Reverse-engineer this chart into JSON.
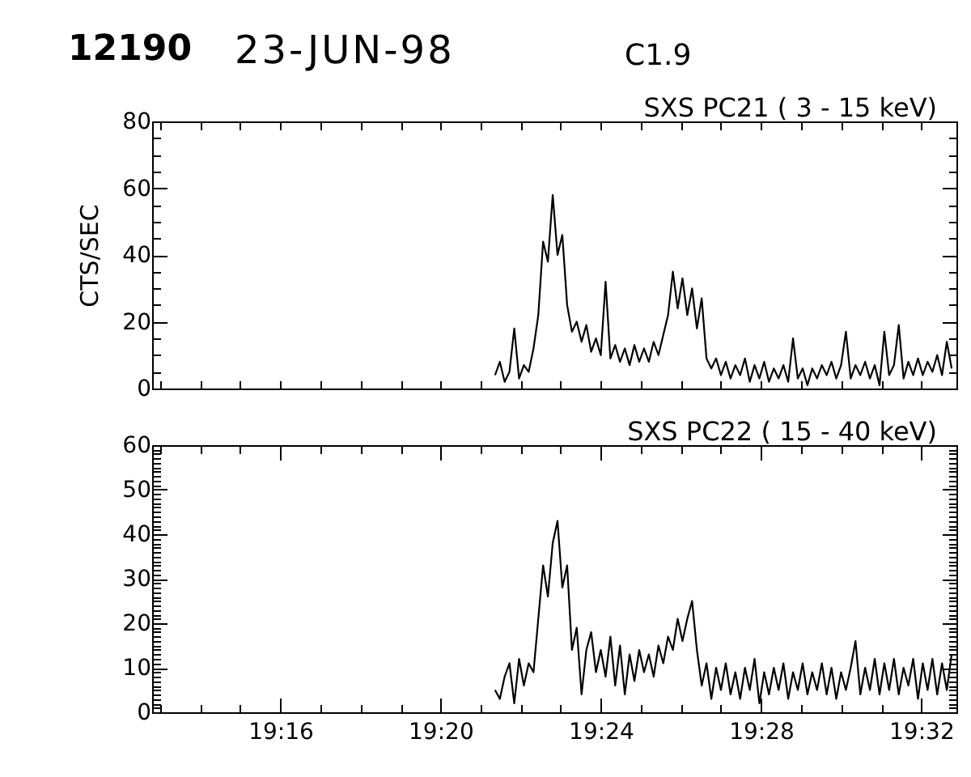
{
  "chart_data": [
    {
      "type": "line",
      "title": "SXS PC21 ( 3 - 15 keV)",
      "ylabel": "CTS/SEC",
      "annotations": [
        "12190",
        "23-JUN-98",
        "C1.9"
      ],
      "color": "#000000",
      "x": [
        19.356,
        19.358,
        19.36,
        19.362,
        19.364,
        19.366,
        19.368,
        19.37,
        19.372,
        19.374,
        19.376,
        19.378,
        19.38,
        19.382,
        19.384,
        19.386,
        19.388,
        19.39,
        19.392,
        19.394,
        19.396,
        19.398,
        19.4,
        19.402,
        19.404,
        19.406,
        19.408,
        19.41,
        19.412,
        19.414,
        19.416,
        19.418,
        19.42,
        19.422,
        19.424,
        19.426,
        19.428,
        19.43,
        19.432,
        19.434,
        19.436,
        19.438,
        19.44,
        19.442,
        19.444,
        19.446,
        19.448,
        19.45,
        19.452,
        19.454,
        19.456,
        19.458,
        19.46,
        19.462,
        19.464,
        19.466,
        19.468,
        19.47,
        19.472,
        19.474,
        19.476,
        19.478,
        19.48,
        19.482,
        19.484,
        19.486,
        19.488,
        19.49,
        19.492,
        19.494,
        19.496,
        19.498,
        19.5,
        19.502,
        19.504,
        19.506,
        19.508,
        19.51,
        19.512,
        19.514,
        19.516,
        19.518,
        19.52,
        19.522,
        19.524,
        19.526,
        19.528,
        19.53,
        19.532,
        19.534,
        19.536,
        19.538,
        19.54,
        19.542,
        19.544,
        19.546
      ],
      "values": [
        4,
        8,
        2,
        5,
        18,
        3,
        7,
        5,
        12,
        22,
        44,
        38,
        58,
        40,
        46,
        25,
        17,
        20,
        14,
        19,
        11,
        15,
        10,
        32,
        9,
        13,
        8,
        12,
        7,
        13,
        8,
        12,
        8,
        14,
        10,
        16,
        22,
        35,
        24,
        33,
        22,
        30,
        18,
        27,
        9,
        6,
        9,
        4,
        8,
        3,
        7,
        4,
        9,
        2,
        7,
        3,
        8,
        2,
        6,
        3,
        7,
        2,
        15,
        3,
        6,
        1,
        6,
        3,
        7,
        4,
        8,
        3,
        7,
        17,
        3,
        7,
        4,
        8,
        3,
        7,
        1,
        17,
        4,
        7,
        19,
        3,
        8,
        4,
        9,
        4,
        8,
        5,
        10,
        4,
        14,
        6
      ],
      "xlim": [
        19.2133,
        19.548
      ],
      "ylim": [
        0,
        80
      ],
      "xticks": [
        {
          "value": 19.2167,
          "label": null
        },
        {
          "value": 19.2333,
          "label": null
        },
        {
          "value": 19.25,
          "label": null
        },
        {
          "value": 19.2667,
          "label": null
        },
        {
          "value": 19.2833,
          "label": null
        },
        {
          "value": 19.3,
          "label": null
        },
        {
          "value": 19.3167,
          "label": null
        },
        {
          "value": 19.3333,
          "label": null
        },
        {
          "value": 19.35,
          "label": null
        },
        {
          "value": 19.3667,
          "label": null
        },
        {
          "value": 19.3833,
          "label": null
        },
        {
          "value": 19.4,
          "label": null
        },
        {
          "value": 19.4167,
          "label": null
        },
        {
          "value": 19.4333,
          "label": null
        },
        {
          "value": 19.45,
          "label": null
        },
        {
          "value": 19.4667,
          "label": null
        },
        {
          "value": 19.4833,
          "label": null
        },
        {
          "value": 19.5,
          "label": null
        },
        {
          "value": 19.5167,
          "label": null
        },
        {
          "value": 19.5333,
          "label": null
        }
      ],
      "yticks": [
        0,
        {
          "value": 5,
          "label": null
        },
        {
          "value": 10,
          "label": null
        },
        {
          "value": 15,
          "label": null
        },
        20,
        {
          "value": 25,
          "label": null
        },
        {
          "value": 30,
          "label": null
        },
        {
          "value": 35,
          "label": null
        },
        40,
        {
          "value": 45,
          "label": null
        },
        {
          "value": 50,
          "label": null
        },
        {
          "value": 55,
          "label": null
        },
        60,
        {
          "value": 65,
          "label": null
        },
        {
          "value": 70,
          "label": null
        },
        {
          "value": 75,
          "label": null
        },
        80
      ],
      "tick_labels": "y"
    },
    {
      "type": "line",
      "title": "SXS PC22 ( 15 - 40 keV)",
      "color": "#000000",
      "x": [
        19.356,
        19.358,
        19.36,
        19.362,
        19.364,
        19.366,
        19.368,
        19.37,
        19.372,
        19.374,
        19.376,
        19.378,
        19.38,
        19.382,
        19.384,
        19.386,
        19.388,
        19.39,
        19.392,
        19.394,
        19.396,
        19.398,
        19.4,
        19.402,
        19.404,
        19.406,
        19.408,
        19.41,
        19.412,
        19.414,
        19.416,
        19.418,
        19.42,
        19.422,
        19.424,
        19.426,
        19.428,
        19.43,
        19.432,
        19.434,
        19.436,
        19.438,
        19.44,
        19.442,
        19.444,
        19.446,
        19.448,
        19.45,
        19.452,
        19.454,
        19.456,
        19.458,
        19.46,
        19.462,
        19.464,
        19.466,
        19.468,
        19.47,
        19.472,
        19.474,
        19.476,
        19.478,
        19.48,
        19.482,
        19.484,
        19.486,
        19.488,
        19.49,
        19.492,
        19.494,
        19.496,
        19.498,
        19.5,
        19.502,
        19.504,
        19.506,
        19.508,
        19.51,
        19.512,
        19.514,
        19.516,
        19.518,
        19.52,
        19.522,
        19.524,
        19.526,
        19.528,
        19.53,
        19.532,
        19.534,
        19.536,
        19.538,
        19.54,
        19.542,
        19.544,
        19.546
      ],
      "values": [
        5,
        3,
        8,
        11,
        2,
        12,
        6,
        11,
        9,
        21,
        33,
        26,
        38,
        43,
        28,
        33,
        14,
        19,
        4,
        14,
        18,
        9,
        14,
        8,
        17,
        6,
        15,
        4,
        13,
        7,
        14,
        9,
        13,
        8,
        15,
        11,
        17,
        14,
        21,
        16,
        21,
        25,
        14,
        6,
        11,
        3,
        10,
        5,
        11,
        4,
        9,
        3,
        10,
        5,
        12,
        2,
        9,
        4,
        10,
        5,
        11,
        3,
        9,
        5,
        11,
        4,
        9,
        5,
        11,
        4,
        10,
        3,
        9,
        5,
        10,
        16,
        4,
        10,
        5,
        12,
        4,
        11,
        5,
        12,
        4,
        10,
        6,
        12,
        3,
        11,
        5,
        12,
        4,
        11,
        5,
        13
      ],
      "xlim": [
        19.2133,
        19.548
      ],
      "ylim": [
        0,
        60
      ],
      "xticks": [
        {
          "value": 19.2167,
          "label": null
        },
        {
          "value": 19.2333,
          "label": null
        },
        {
          "value": 19.25,
          "label": null
        },
        {
          "value": 19.2667,
          "label": "19:16"
        },
        {
          "value": 19.2833,
          "label": null
        },
        {
          "value": 19.3,
          "label": null
        },
        {
          "value": 19.3167,
          "label": null
        },
        {
          "value": 19.3333,
          "label": "19:20"
        },
        {
          "value": 19.35,
          "label": null
        },
        {
          "value": 19.3667,
          "label": null
        },
        {
          "value": 19.3833,
          "label": null
        },
        {
          "value": 19.4,
          "label": "19:24"
        },
        {
          "value": 19.4167,
          "label": null
        },
        {
          "value": 19.4333,
          "label": null
        },
        {
          "value": 19.45,
          "label": null
        },
        {
          "value": 19.4667,
          "label": "19:28"
        },
        {
          "value": 19.4833,
          "label": null
        },
        {
          "value": 19.5,
          "label": null
        },
        {
          "value": 19.5167,
          "label": null
        },
        {
          "value": 19.5333,
          "label": "19:32"
        }
      ],
      "yticks": [
        0,
        {
          "value": 1,
          "label": null
        },
        {
          "value": 2,
          "label": null
        },
        {
          "value": 3,
          "label": null
        },
        {
          "value": 4,
          "label": null
        },
        {
          "value": 5,
          "label": null
        },
        {
          "value": 6,
          "label": null
        },
        {
          "value": 7,
          "label": null
        },
        {
          "value": 8,
          "label": null
        },
        {
          "value": 9,
          "label": null
        },
        10,
        {
          "value": 11,
          "label": null
        },
        {
          "value": 12,
          "label": null
        },
        {
          "value": 13,
          "label": null
        },
        {
          "value": 14,
          "label": null
        },
        {
          "value": 15,
          "label": null
        },
        {
          "value": 16,
          "label": null
        },
        {
          "value": 17,
          "label": null
        },
        {
          "value": 18,
          "label": null
        },
        {
          "value": 19,
          "label": null
        },
        20,
        {
          "value": 21,
          "label": null
        },
        {
          "value": 22,
          "label": null
        },
        {
          "value": 23,
          "label": null
        },
        {
          "value": 24,
          "label": null
        },
        {
          "value": 25,
          "label": null
        },
        {
          "value": 26,
          "label": null
        },
        {
          "value": 27,
          "label": null
        },
        {
          "value": 28,
          "label": null
        },
        {
          "value": 29,
          "label": null
        },
        30,
        {
          "value": 31,
          "label": null
        },
        {
          "value": 32,
          "label": null
        },
        {
          "value": 33,
          "label": null
        },
        {
          "value": 34,
          "label": null
        },
        {
          "value": 35,
          "label": null
        },
        {
          "value": 36,
          "label": null
        },
        {
          "value": 37,
          "label": null
        },
        {
          "value": 38,
          "label": null
        },
        {
          "value": 39,
          "label": null
        },
        40,
        {
          "value": 41,
          "label": null
        },
        {
          "value": 42,
          "label": null
        },
        {
          "value": 43,
          "label": null
        },
        {
          "value": 44,
          "label": null
        },
        {
          "value": 45,
          "label": null
        },
        {
          "value": 46,
          "label": null
        },
        {
          "value": 47,
          "label": null
        },
        {
          "value": 48,
          "label": null
        },
        {
          "value": 49,
          "label": null
        },
        50,
        {
          "value": 51,
          "label": null
        },
        {
          "value": 52,
          "label": null
        },
        {
          "value": 53,
          "label": null
        },
        {
          "value": 54,
          "label": null
        },
        {
          "value": 55,
          "label": null
        },
        {
          "value": 56,
          "label": null
        },
        {
          "value": 57,
          "label": null
        },
        {
          "value": 58,
          "label": null
        },
        {
          "value": 59,
          "label": null
        },
        60
      ]
    }
  ]
}
